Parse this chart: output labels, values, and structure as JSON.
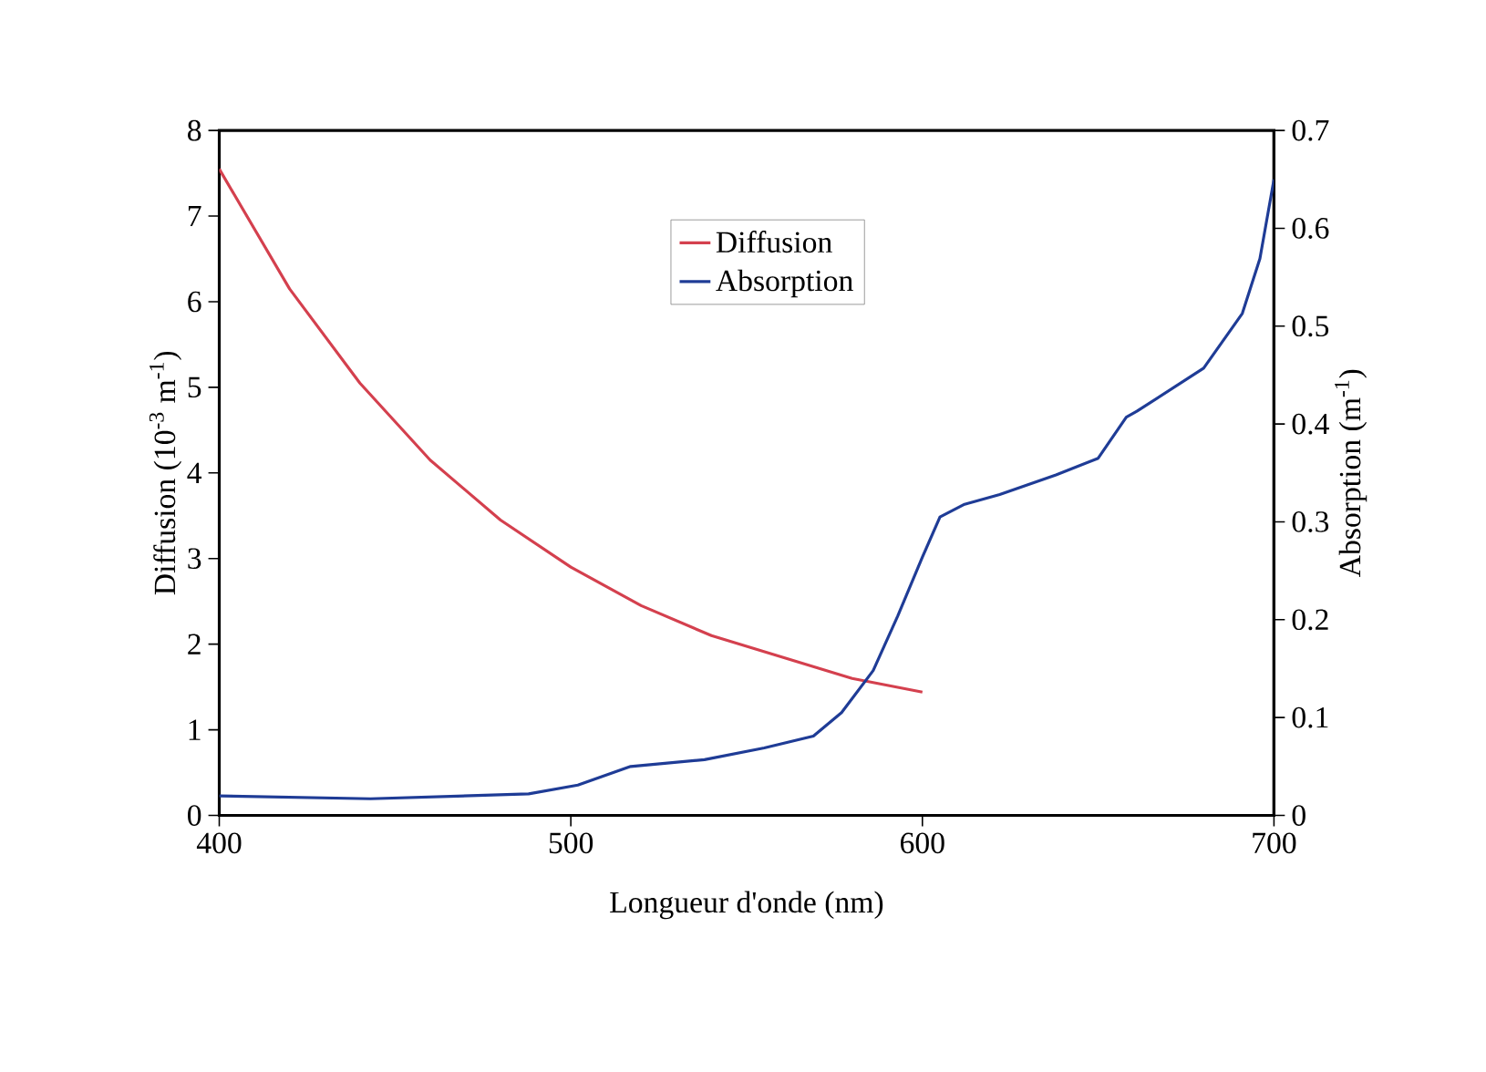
{
  "chart_data": {
    "type": "line",
    "xlabel": "Longueur d'onde (nm)",
    "ylabel": "Diffusion (10$^{-3}$ m$^{-1}$)",
    "y2label": "Absorption (m$^{-1}$)",
    "xlim": [
      400,
      700
    ],
    "xticks": [
      400,
      500,
      600,
      700
    ],
    "ylim": [
      0,
      8
    ],
    "yticks": [
      0,
      1,
      2,
      3,
      4,
      5,
      6,
      7,
      8
    ],
    "y2lim": [
      0,
      0.7
    ],
    "y2ticks": [
      0,
      0.1,
      0.2,
      0.3,
      0.4,
      0.5,
      0.6,
      0.7
    ],
    "legend": "top",
    "marker": "none",
    "line_style": "solid",
    "series": [
      {
        "name": "Diffusion",
        "color": "#d4404e",
        "x": [
          400,
          420,
          440,
          460,
          480,
          500,
          520,
          540,
          560,
          580,
          600
        ],
        "values": [
          7.55,
          6.15,
          5.05,
          4.15,
          3.45,
          2.9,
          2.45,
          2.1,
          1.85,
          1.6,
          1.44
        ]
      },
      {
        "name": "Absorption",
        "color": "#1f3c96",
        "axis": "y2",
        "x": [
          400,
          443,
          488,
          502,
          517,
          538,
          555,
          569,
          577,
          586,
          593,
          600,
          605,
          612,
          622,
          638,
          650,
          658,
          661,
          680,
          691,
          696,
          700
        ],
        "values": [
          0.02,
          0.017,
          0.022,
          0.031,
          0.05,
          0.057,
          0.069,
          0.081,
          0.105,
          0.148,
          0.204,
          0.264,
          0.305,
          0.318,
          0.328,
          0.348,
          0.365,
          0.407,
          0.413,
          0.457,
          0.513,
          0.569,
          0.65
        ]
      }
    ]
  }
}
